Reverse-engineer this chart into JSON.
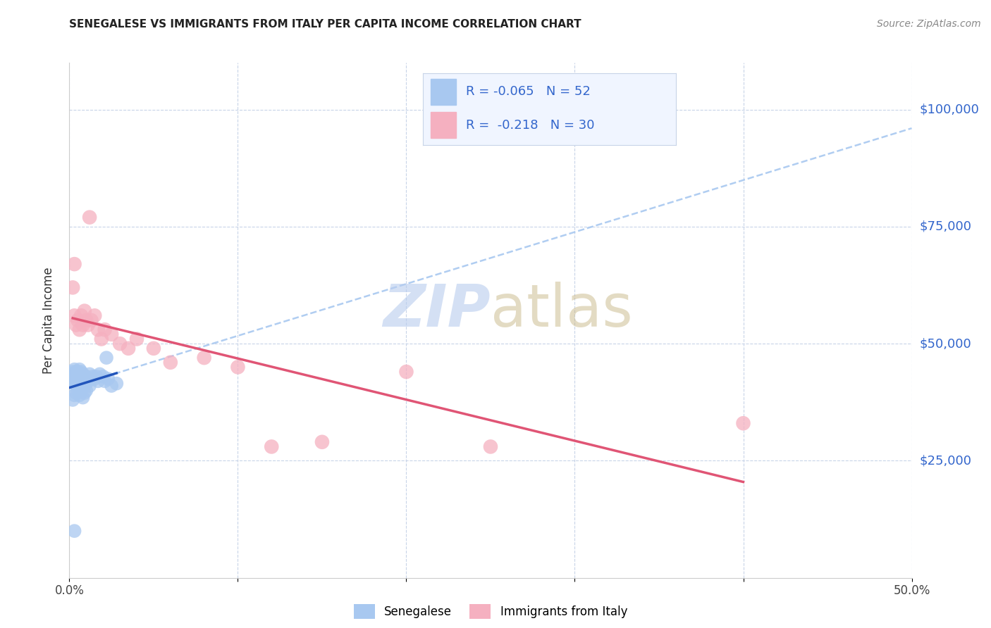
{
  "title": "SENEGALESE VS IMMIGRANTS FROM ITALY PER CAPITA INCOME CORRELATION CHART",
  "source": "Source: ZipAtlas.com",
  "ylabel": "Per Capita Income",
  "xlim": [
    0,
    0.5
  ],
  "ylim": [
    0,
    110000
  ],
  "yticks": [
    25000,
    50000,
    75000,
    100000
  ],
  "ytick_labels": [
    "$25,000",
    "$50,000",
    "$75,000",
    "$100,000"
  ],
  "xticks": [
    0.0,
    0.1,
    0.2,
    0.3,
    0.4,
    0.5
  ],
  "xtick_labels": [
    "0.0%",
    "",
    "",
    "",
    "",
    "50.0%"
  ],
  "blue_R": -0.065,
  "blue_N": 52,
  "pink_R": -0.218,
  "pink_N": 30,
  "blue_color": "#a8c8f0",
  "pink_color": "#f5b0c0",
  "blue_line_color": "#2255bb",
  "pink_line_color": "#e05575",
  "background_color": "#ffffff",
  "grid_color": "#c8d4e8",
  "blue_scatter_x": [
    0.001,
    0.001,
    0.002,
    0.002,
    0.002,
    0.003,
    0.003,
    0.003,
    0.003,
    0.004,
    0.004,
    0.004,
    0.005,
    0.005,
    0.005,
    0.006,
    0.006,
    0.006,
    0.007,
    0.007,
    0.008,
    0.008,
    0.008,
    0.009,
    0.009,
    0.01,
    0.01,
    0.011,
    0.012,
    0.012,
    0.013,
    0.014,
    0.015,
    0.016,
    0.017,
    0.018,
    0.02,
    0.021,
    0.023,
    0.025,
    0.028,
    0.002,
    0.003,
    0.004,
    0.005,
    0.006,
    0.007,
    0.008,
    0.009,
    0.01,
    0.003,
    0.022
  ],
  "blue_scatter_y": [
    43000,
    42000,
    44000,
    43500,
    42500,
    44500,
    43000,
    42000,
    41500,
    44000,
    43500,
    42500,
    44000,
    43000,
    42500,
    44500,
    43500,
    42000,
    43000,
    44000,
    43500,
    42500,
    41000,
    43000,
    42500,
    43000,
    41500,
    42000,
    43500,
    41000,
    42500,
    43000,
    42500,
    43000,
    42000,
    43500,
    43000,
    42000,
    42500,
    41000,
    41500,
    38000,
    39000,
    39500,
    40000,
    39000,
    40000,
    38500,
    39500,
    40000,
    10000,
    47000
  ],
  "pink_scatter_x": [
    0.002,
    0.003,
    0.004,
    0.005,
    0.006,
    0.007,
    0.008,
    0.009,
    0.01,
    0.011,
    0.012,
    0.013,
    0.015,
    0.017,
    0.019,
    0.021,
    0.025,
    0.03,
    0.035,
    0.04,
    0.05,
    0.06,
    0.08,
    0.1,
    0.12,
    0.15,
    0.2,
    0.25,
    0.4,
    0.003
  ],
  "pink_scatter_y": [
    62000,
    56000,
    54000,
    55000,
    53000,
    56000,
    54000,
    57000,
    55000,
    54000,
    77000,
    55000,
    56000,
    53000,
    51000,
    53000,
    52000,
    50000,
    49000,
    51000,
    49000,
    46000,
    47000,
    45000,
    28000,
    29000,
    44000,
    28000,
    33000,
    67000
  ]
}
